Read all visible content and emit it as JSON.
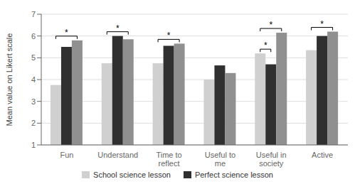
{
  "chart_data": {
    "type": "bar",
    "categories": [
      "Fun",
      "Understand",
      "Time to\nreflect",
      "Useful to\nme",
      "Useful in\nsociety",
      "Active"
    ],
    "series": [
      {
        "name": "School science lesson",
        "color": "#d0d0d0",
        "values": [
          3.75,
          4.75,
          4.75,
          4.0,
          5.2,
          5.35
        ]
      },
      {
        "name": "Perfect science lesson",
        "color": "#303030",
        "values": [
          5.5,
          6.0,
          5.55,
          4.65,
          4.7,
          6.0
        ]
      },
      {
        "color": "#909090",
        "values": [
          5.8,
          5.85,
          5.65,
          4.3,
          6.15,
          6.2
        ]
      }
    ],
    "ylabel": "Mean value on Likert scale",
    "ylim": [
      1,
      7
    ],
    "yticks": [
      1,
      2,
      3,
      4,
      5,
      6,
      7
    ],
    "grid": true,
    "legend": "bottom",
    "annotations": [
      {
        "text": "*",
        "category": "Fun",
        "between": [
          0,
          2
        ]
      },
      {
        "text": "*",
        "category": "Understand",
        "between": [
          0,
          2
        ]
      },
      {
        "text": "*",
        "category": "Time to\nreflect",
        "between": [
          0,
          2
        ]
      },
      {
        "text": "*",
        "category": "Useful in\nsociety",
        "between": [
          0,
          1
        ]
      },
      {
        "text": "*",
        "category": "Useful in\nsociety",
        "between": [
          0,
          2
        ]
      },
      {
        "text": "*",
        "category": "Active",
        "between": [
          0,
          2
        ]
      }
    ]
  }
}
